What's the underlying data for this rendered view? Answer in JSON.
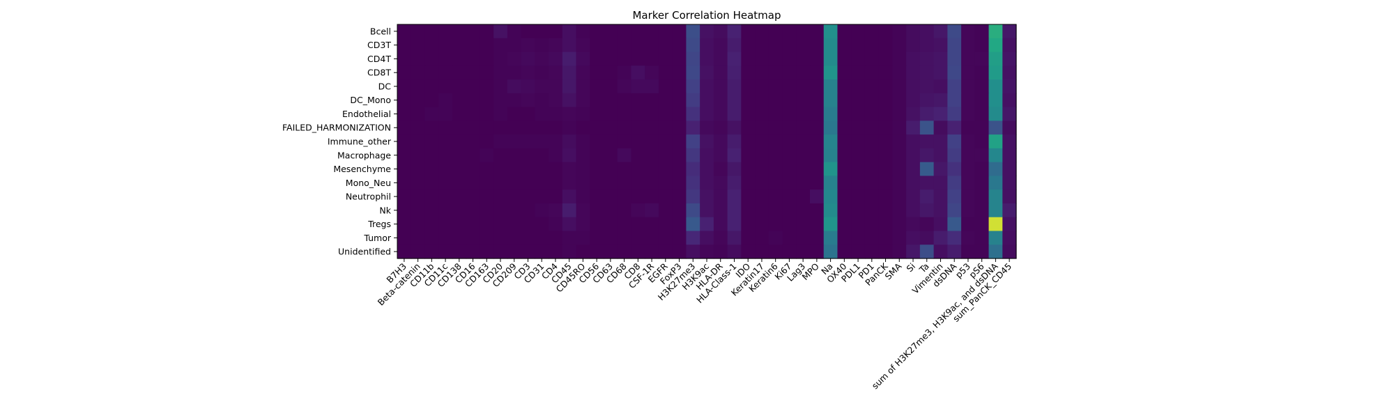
{
  "chart_data": {
    "type": "heatmap",
    "title": "Marker Correlation Heatmap",
    "xlabel": "",
    "ylabel": "",
    "colormap": "viridis",
    "grid": false,
    "legend": "none",
    "rows": [
      "Bcell",
      "CD3T",
      "CD4T",
      "CD8T",
      "DC",
      "DC_Mono",
      "Endothelial",
      "FAILED_HARMONIZATION",
      "Immune_other",
      "Macrophage",
      "Mesenchyme",
      "Mono_Neu",
      "Neutrophil",
      "Nk",
      "Tregs",
      "Tumor",
      "Unidentified"
    ],
    "columns": [
      "B7H3",
      "Beta-catenin",
      "CD11b",
      "CD11c",
      "CD138",
      "CD16",
      "CD163",
      "CD20",
      "CD209",
      "CD3",
      "CD31",
      "CD4",
      "CD45",
      "CD45RO",
      "CD56",
      "CD63",
      "CD68",
      "CD8",
      "CSF-1R",
      "EGFR",
      "FoxP3",
      "H3K27me3",
      "H3K9ac",
      "HLA-DR",
      "HLA-Class-1",
      "IDO",
      "Keratin17",
      "Keratin6",
      "Ki67",
      "Lag3",
      "MPO",
      "Na",
      "OX40",
      "PDL1",
      "PD1",
      "PanCK",
      "SMA",
      "Si",
      "Ta",
      "Vimentin",
      "dsDNA",
      "p53",
      "pS6",
      "sum of H3K27me3, H3K9ac, and dsDNA",
      "sum_PanCK_CD45"
    ],
    "values": [
      [
        0,
        0,
        0,
        0,
        0,
        0,
        0,
        0.06,
        0.01,
        0,
        0,
        0,
        0.05,
        0.01,
        0,
        0,
        0,
        0,
        0,
        0,
        0,
        0.3,
        0.06,
        0.04,
        0.12,
        0,
        0,
        0,
        0,
        0,
        0,
        0.62,
        0,
        0,
        0,
        0,
        0.01,
        0.04,
        0.05,
        0.08,
        0.28,
        0.02,
        0.01,
        0.78,
        0.08
      ],
      [
        0,
        0,
        0,
        0,
        0,
        0,
        0,
        0.01,
        0.01,
        0.02,
        0.01,
        0.02,
        0.05,
        0.02,
        0,
        0,
        0,
        0,
        0,
        0,
        0,
        0.28,
        0.05,
        0.03,
        0.1,
        0,
        0,
        0,
        0,
        0,
        0,
        0.6,
        0,
        0,
        0,
        0,
        0.01,
        0.04,
        0.05,
        0.06,
        0.26,
        0.02,
        0.01,
        0.75,
        0.06
      ],
      [
        0,
        0,
        0,
        0,
        0,
        0,
        0,
        0.01,
        0.02,
        0.03,
        0.02,
        0.03,
        0.1,
        0.03,
        0,
        0,
        0,
        0,
        0,
        0,
        0,
        0.26,
        0.05,
        0.03,
        0.12,
        0,
        0,
        0,
        0,
        0,
        0,
        0.6,
        0,
        0,
        0,
        0,
        0.01,
        0.05,
        0.06,
        0.07,
        0.26,
        0.02,
        0.02,
        0.7,
        0.07
      ],
      [
        0,
        0,
        0,
        0,
        0,
        0,
        0,
        0.01,
        0.01,
        0.02,
        0.01,
        0.02,
        0.08,
        0.02,
        0,
        0,
        0.01,
        0.05,
        0.02,
        0,
        0,
        0.27,
        0.06,
        0.03,
        0.11,
        0,
        0,
        0,
        0,
        0,
        0,
        0.64,
        0,
        0,
        0,
        0,
        0.01,
        0.05,
        0.06,
        0.07,
        0.27,
        0.02,
        0.01,
        0.68,
        0.06
      ],
      [
        0,
        0,
        0,
        0,
        0,
        0,
        0,
        0.01,
        0.04,
        0.03,
        0.02,
        0.02,
        0.08,
        0.02,
        0,
        0,
        0.02,
        0.03,
        0.03,
        0,
        0,
        0.24,
        0.05,
        0.03,
        0.1,
        0,
        0,
        0,
        0,
        0,
        0,
        0.55,
        0,
        0,
        0,
        0,
        0.01,
        0.05,
        0.06,
        0.05,
        0.24,
        0.02,
        0.01,
        0.62,
        0.07
      ],
      [
        0,
        0,
        0,
        0.01,
        0,
        0,
        0,
        0.01,
        0.01,
        0.02,
        0.01,
        0.02,
        0.06,
        0.02,
        0,
        0,
        0,
        0,
        0,
        0,
        0,
        0.22,
        0.05,
        0.03,
        0.1,
        0,
        0,
        0,
        0,
        0,
        0,
        0.55,
        0,
        0,
        0,
        0,
        0.01,
        0.05,
        0.07,
        0.08,
        0.24,
        0.02,
        0.01,
        0.62,
        0.06
      ],
      [
        0,
        0,
        0.01,
        0.01,
        0,
        0,
        0,
        0.01,
        0,
        0,
        0.01,
        0.01,
        0.02,
        0.01,
        0,
        0,
        0,
        0,
        0,
        0,
        0,
        0.18,
        0.05,
        0.03,
        0.1,
        0,
        0,
        0,
        0,
        0,
        0,
        0.52,
        0,
        0,
        0,
        0,
        0.01,
        0.06,
        0.1,
        0.12,
        0.22,
        0.02,
        0.01,
        0.6,
        0.08
      ],
      [
        0,
        0,
        0,
        0,
        0,
        0,
        0,
        0,
        0,
        0,
        0,
        0,
        0.01,
        0,
        0,
        0,
        0,
        0,
        0,
        0,
        0,
        0.12,
        0.03,
        0.02,
        0.06,
        0,
        0,
        0,
        0,
        0,
        0,
        0.5,
        0,
        0,
        0,
        0,
        0.01,
        0.1,
        0.32,
        0.04,
        0.12,
        0.01,
        0.01,
        0.32,
        0.04
      ],
      [
        0,
        0,
        0,
        0,
        0,
        0,
        0,
        0.01,
        0.01,
        0.01,
        0.01,
        0.01,
        0.04,
        0.01,
        0,
        0,
        0,
        0,
        0,
        0,
        0,
        0.24,
        0.06,
        0.03,
        0.1,
        0,
        0,
        0,
        0,
        0,
        0,
        0.56,
        0,
        0,
        0,
        0,
        0.01,
        0.05,
        0.06,
        0.06,
        0.24,
        0.02,
        0.01,
        0.72,
        0.06
      ],
      [
        0,
        0,
        0,
        0,
        0,
        0,
        0.01,
        0,
        0,
        0,
        0,
        0.01,
        0.05,
        0.01,
        0,
        0,
        0.03,
        0,
        0,
        0,
        0,
        0.2,
        0.05,
        0.03,
        0.12,
        0,
        0,
        0,
        0,
        0,
        0,
        0.55,
        0,
        0,
        0,
        0,
        0.01,
        0.05,
        0.08,
        0.06,
        0.22,
        0.02,
        0.02,
        0.58,
        0.06
      ],
      [
        0,
        0,
        0,
        0,
        0,
        0,
        0,
        0,
        0,
        0,
        0,
        0,
        0.02,
        0.01,
        0,
        0,
        0,
        0,
        0,
        0,
        0,
        0.16,
        0.05,
        0.02,
        0.08,
        0,
        0,
        0,
        0,
        0,
        0,
        0.64,
        0,
        0,
        0,
        0,
        0.01,
        0.05,
        0.36,
        0.08,
        0.18,
        0.02,
        0.01,
        0.44,
        0.06
      ],
      [
        0,
        0,
        0,
        0,
        0,
        0,
        0,
        0,
        0,
        0,
        0,
        0,
        0.02,
        0.01,
        0,
        0,
        0,
        0,
        0,
        0,
        0,
        0.18,
        0.05,
        0.03,
        0.1,
        0,
        0,
        0,
        0,
        0,
        0,
        0.55,
        0,
        0,
        0,
        0,
        0.01,
        0.05,
        0.06,
        0.06,
        0.22,
        0.02,
        0.01,
        0.5,
        0.06
      ],
      [
        0,
        0,
        0,
        0,
        0,
        0,
        0,
        0,
        0,
        0,
        0,
        0,
        0.05,
        0.01,
        0,
        0,
        0,
        0,
        0,
        0,
        0,
        0.2,
        0.06,
        0.03,
        0.12,
        0,
        0,
        0,
        0,
        0,
        0.05,
        0.58,
        0,
        0,
        0,
        0,
        0.01,
        0.05,
        0.1,
        0.06,
        0.24,
        0.02,
        0.01,
        0.56,
        0.06
      ],
      [
        0,
        0,
        0,
        0,
        0,
        0,
        0,
        0,
        0,
        0,
        0.01,
        0.02,
        0.1,
        0.02,
        0,
        0,
        0,
        0.02,
        0.03,
        0,
        0,
        0.28,
        0.06,
        0.03,
        0.12,
        0,
        0,
        0,
        0,
        0,
        0,
        0.6,
        0,
        0,
        0,
        0,
        0.01,
        0.05,
        0.08,
        0.06,
        0.26,
        0.02,
        0.01,
        0.56,
        0.1
      ],
      [
        0,
        0,
        0,
        0,
        0,
        0,
        0,
        0,
        0,
        0,
        0,
        0.01,
        0.05,
        0.02,
        0,
        0,
        0,
        0,
        0,
        0,
        0,
        0.35,
        0.12,
        0.03,
        0.12,
        0,
        0,
        0,
        0,
        0,
        0,
        0.65,
        0,
        0,
        0,
        0,
        0.01,
        0.03,
        0.02,
        0.05,
        0.35,
        0.01,
        0.01,
        0.98,
        0.06
      ],
      [
        0,
        0,
        0,
        0,
        0,
        0,
        0,
        0,
        0,
        0,
        0,
        0,
        0.01,
        0.01,
        0,
        0,
        0,
        0,
        0,
        0,
        0,
        0.14,
        0.05,
        0.02,
        0.08,
        0,
        0,
        0.01,
        0,
        0,
        0,
        0.52,
        0,
        0,
        0,
        0,
        0.01,
        0.05,
        0.04,
        0.1,
        0.16,
        0.02,
        0.01,
        0.55,
        0.05
      ],
      [
        0,
        0,
        0,
        0,
        0,
        0,
        0,
        0,
        0,
        0,
        0,
        0,
        0.01,
        0,
        0,
        0,
        0,
        0,
        0,
        0,
        0,
        0.05,
        0.02,
        0.01,
        0.04,
        0,
        0,
        0,
        0,
        0,
        0,
        0.48,
        0,
        0,
        0,
        0,
        0.01,
        0.08,
        0.3,
        0.05,
        0.1,
        0.01,
        0.01,
        0.46,
        0.04
      ]
    ]
  }
}
